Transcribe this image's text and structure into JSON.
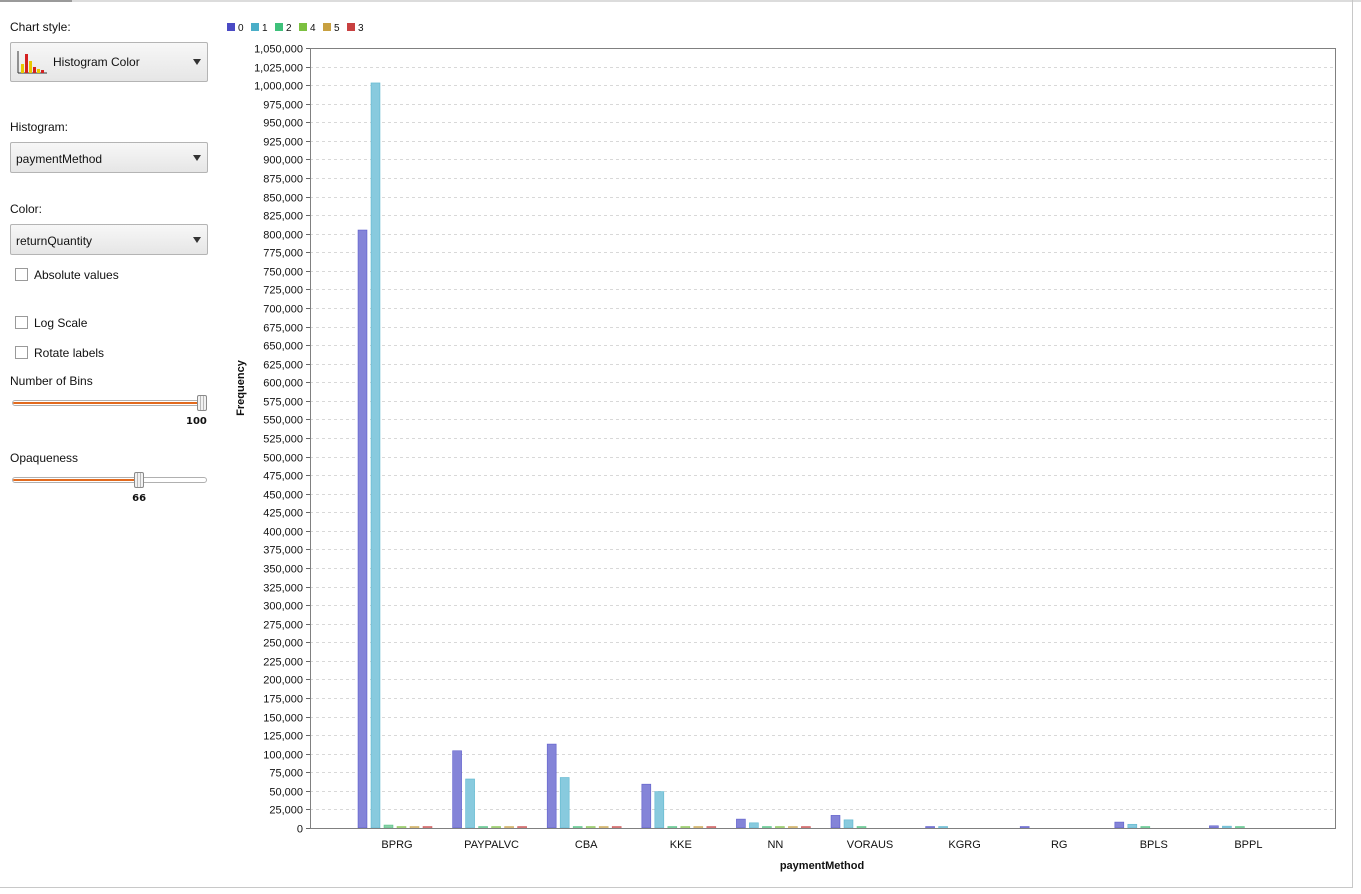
{
  "panel": {
    "chart_style_label": "Chart style:",
    "chart_style_value": "Histogram Color",
    "histogram_label": "Histogram:",
    "histogram_value": "paymentMethod",
    "color_label": "Color:",
    "color_value": "returnQuantity",
    "absolute_values_label": "Absolute values",
    "log_scale_label": "Log Scale",
    "rotate_labels_label": "Rotate labels",
    "bins_label": "Number of Bins",
    "bins_value": "100",
    "bins_fraction": 1.0,
    "opaqueness_label": "Opaqueness",
    "opaqueness_value": "66",
    "opaqueness_fraction": 0.66
  },
  "chart_data": {
    "type": "bar",
    "xlabel": "paymentMethod",
    "ylabel": "Frequency",
    "ylim": [
      0,
      1050000
    ],
    "ytick_step": 25000,
    "grid": true,
    "legend_position": "top-left",
    "categories": [
      "BPRG",
      "PAYPALVC",
      "CBA",
      "KKE",
      "NN",
      "VORAUS",
      "KGRG",
      "RG",
      "BPLS",
      "BPPL"
    ],
    "series": [
      {
        "name": "0",
        "color": "#4a4ac4",
        "bar_color": "#8484d8",
        "values": [
          805000,
          104000,
          113000,
          59000,
          12000,
          17000,
          300,
          500,
          8000,
          3000
        ]
      },
      {
        "name": "1",
        "color": "#4aaec8",
        "bar_color": "#88cade",
        "values": [
          1003000,
          66000,
          68000,
          49000,
          7000,
          11000,
          200,
          0,
          5000,
          2500
        ]
      },
      {
        "name": "2",
        "color": "#3ec07a",
        "bar_color": "#8ad0a8",
        "values": [
          4000,
          1000,
          1000,
          800,
          300,
          1000,
          0,
          0,
          500,
          200
        ]
      },
      {
        "name": "4",
        "color": "#7cc040",
        "bar_color": "#aed48a",
        "values": [
          1000,
          500,
          500,
          300,
          100,
          0,
          0,
          0,
          0,
          0
        ]
      },
      {
        "name": "5",
        "color": "#c8a040",
        "bar_color": "#d8c088",
        "values": [
          1000,
          400,
          400,
          200,
          100,
          0,
          0,
          0,
          0,
          0
        ]
      },
      {
        "name": "3",
        "color": "#c84040",
        "bar_color": "#d88888",
        "values": [
          1000,
          400,
          400,
          200,
          100,
          0,
          0,
          0,
          0,
          0
        ]
      }
    ]
  }
}
